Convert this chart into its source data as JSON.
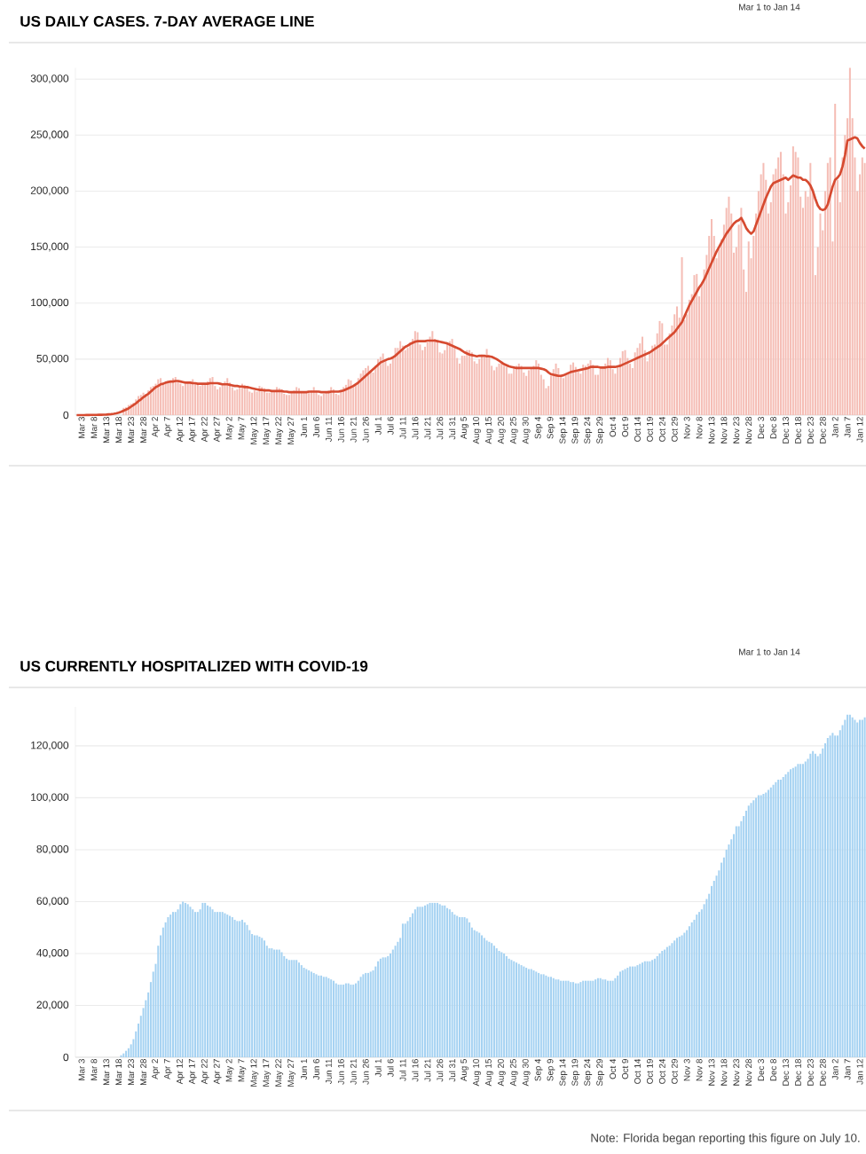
{
  "chart_data": [
    {
      "type": "bar",
      "title": "US DAILY CASES. 7-DAY AVERAGE LINE",
      "subtitle": "Mar 1 to Jan 14",
      "categories": [
        null,
        null,
        "Mar 3",
        null,
        null,
        null,
        null,
        "Mar 8",
        null,
        null,
        null,
        null,
        "Mar 13",
        null,
        null,
        null,
        null,
        "Mar 18",
        null,
        null,
        null,
        null,
        "Mar 23",
        null,
        null,
        null,
        null,
        "Mar 28",
        null,
        null,
        null,
        null,
        "Apr 2",
        null,
        null,
        null,
        null,
        "Apr 7",
        null,
        null,
        null,
        null,
        "Apr 12",
        null,
        null,
        null,
        null,
        "Apr 17",
        null,
        null,
        null,
        null,
        "Apr 22",
        null,
        null,
        null,
        null,
        "Apr 27",
        null,
        null,
        null,
        null,
        "May 2",
        null,
        null,
        null,
        null,
        "May 7",
        null,
        null,
        null,
        null,
        "May 12",
        null,
        null,
        null,
        null,
        "May 17",
        null,
        null,
        null,
        null,
        "May 22",
        null,
        null,
        null,
        null,
        "May 27",
        null,
        null,
        null,
        null,
        "Jun 1",
        null,
        null,
        null,
        null,
        "Jun 6",
        null,
        null,
        null,
        null,
        "Jun 11",
        null,
        null,
        null,
        null,
        "Jun 16",
        null,
        null,
        null,
        null,
        "Jun 21",
        null,
        null,
        null,
        null,
        "Jun 26",
        null,
        null,
        null,
        null,
        "Jul 1",
        null,
        null,
        null,
        null,
        "Jul 6",
        null,
        null,
        null,
        null,
        "Jul 11",
        null,
        null,
        null,
        null,
        "Jul 16",
        null,
        null,
        null,
        null,
        "Jul 21",
        null,
        null,
        null,
        null,
        "Jul 26",
        null,
        null,
        null,
        null,
        "Jul 31",
        null,
        null,
        null,
        null,
        "Aug 5",
        null,
        null,
        null,
        null,
        "Aug 10",
        null,
        null,
        null,
        null,
        "Aug 15",
        null,
        null,
        null,
        null,
        "Aug 20",
        null,
        null,
        null,
        null,
        "Aug 25",
        null,
        null,
        null,
        null,
        "Aug 30",
        null,
        null,
        null,
        null,
        "Sep 4",
        null,
        null,
        null,
        null,
        "Sep 9",
        null,
        null,
        null,
        null,
        "Sep 14",
        null,
        null,
        null,
        null,
        "Sep 19",
        null,
        null,
        null,
        null,
        "Sep 24",
        null,
        null,
        null,
        null,
        "Sep 29",
        null,
        null,
        null,
        null,
        "Oct 4",
        null,
        null,
        null,
        null,
        "Oct 9",
        null,
        null,
        null,
        null,
        "Oct 14",
        null,
        null,
        null,
        null,
        "Oct 19",
        null,
        null,
        null,
        null,
        "Oct 24",
        null,
        null,
        null,
        null,
        "Oct 29",
        null,
        null,
        null,
        null,
        "Nov 3",
        null,
        null,
        null,
        null,
        "Nov 8",
        null,
        null,
        null,
        null,
        "Nov 13",
        null,
        null,
        null,
        null,
        "Nov 18",
        null,
        null,
        null,
        null,
        "Nov 23",
        null,
        null,
        null,
        null,
        "Nov 28",
        null,
        null,
        null,
        null,
        "Dec 3",
        null,
        null,
        null,
        null,
        "Dec 8",
        null,
        null,
        null,
        null,
        "Dec 13",
        null,
        null,
        null,
        null,
        "Dec 18",
        null,
        null,
        null,
        null,
        "Dec 23",
        null,
        null,
        null,
        null,
        "Dec 28",
        null,
        null,
        null,
        null,
        "Jan 2",
        null,
        null,
        null,
        null,
        "Jan 7",
        null,
        null,
        null,
        null,
        "Jan 12",
        null,
        null
      ],
      "series": [
        {
          "color": "#f5bdb5",
          "values": [
            null,
            null,
            null,
            null,
            null,
            null,
            null,
            null,
            null,
            null,
            null,
            null,
            null,
            null,
            null,
            null,
            null,
            null,
            null,
            6500,
            7000,
            9000,
            10000,
            11000,
            14000,
            17000,
            18000,
            20000,
            19000,
            22000,
            25000,
            26000,
            28000,
            32000,
            33000,
            28000,
            29000,
            31000,
            30000,
            33000,
            34000,
            31000,
            28000,
            26000,
            28000,
            30000,
            30000,
            32000,
            29000,
            27000,
            26000,
            27000,
            28000,
            30000,
            33000,
            34000,
            26000,
            23000,
            25000,
            28000,
            30000,
            33000,
            29000,
            25000,
            22000,
            23000,
            25000,
            28000,
            27000,
            26000,
            21000,
            20000,
            22000,
            21000,
            26000,
            25000,
            24000,
            20000,
            20000,
            21000,
            21000,
            25000,
            24000,
            23000,
            19000,
            18000,
            18000,
            21000,
            22000,
            25000,
            24000,
            21000,
            20000,
            21000,
            21000,
            22000,
            25000,
            22000,
            18000,
            17000,
            19000,
            21000,
            22000,
            25000,
            23000,
            19000,
            18000,
            22000,
            25000,
            27000,
            32000,
            31000,
            27000,
            27000,
            33000,
            37000,
            40000,
            42000,
            44000,
            40000,
            38000,
            44000,
            50000,
            52000,
            55000,
            49000,
            44000,
            46000,
            51000,
            60000,
            60000,
            66000,
            62000,
            58000,
            60000,
            65000,
            68000,
            75000,
            74000,
            63000,
            58000,
            61000,
            65000,
            70000,
            75000,
            68000,
            66000,
            56000,
            55000,
            58000,
            64000,
            66000,
            68000,
            61000,
            51000,
            46000,
            53000,
            53000,
            58000,
            58000,
            56000,
            48000,
            46000,
            50000,
            54000,
            52000,
            59000,
            53000,
            44000,
            40000,
            43000,
            46000,
            47000,
            44000,
            43000,
            37000,
            37000,
            42000,
            44000,
            46000,
            44000,
            38000,
            35000,
            40000,
            42000,
            44000,
            49000,
            46000,
            36000,
            32000,
            24000,
            26000,
            35000,
            41000,
            46000,
            42000,
            36000,
            33000,
            37000,
            38000,
            45000,
            47000,
            43000,
            39000,
            37000,
            45000,
            44000,
            46000,
            49000,
            45000,
            36000,
            36000,
            42000,
            43000,
            46000,
            51000,
            49000,
            41000,
            37000,
            43000,
            51000,
            57000,
            58000,
            51000,
            46000,
            42000,
            56000,
            60000,
            64000,
            70000,
            58000,
            48000,
            56000,
            62000,
            63000,
            73000,
            84000,
            82000,
            63000,
            63000,
            73000,
            80000,
            90000,
            97000,
            87000,
            141000,
            85000,
            90000,
            103000,
            108000,
            125000,
            126000,
            106000,
            118000,
            130000,
            143000,
            160000,
            175000,
            160000,
            140000,
            148000,
            157000,
            170000,
            185000,
            195000,
            180000,
            145000,
            150000,
            170000,
            185000,
            130000,
            110000,
            155000,
            140000,
            160000,
            180000,
            200000,
            215000,
            225000,
            210000,
            180000,
            190000,
            215000,
            220000,
            230000,
            235000,
            215000,
            180000,
            190000,
            205000,
            240000,
            235000,
            230000,
            195000,
            185000,
            200000,
            195000,
            225000,
            200000,
            125000,
            150000,
            180000,
            165000,
            200000,
            225000,
            230000,
            155000,
            278000,
            210000,
            190000,
            230000,
            250000,
            265000,
            310000,
            265000,
            230000,
            200000,
            215000,
            230000,
            225000
          ]
        },
        {
          "type": "line",
          "color": "#d64a30",
          "values": [
            0,
            0,
            0,
            0,
            100,
            100,
            200,
            200,
            200,
            300,
            300,
            400,
            500,
            700,
            900,
            1200,
            1600,
            2200,
            3000,
            4000,
            5000,
            6000,
            7500,
            9000,
            10500,
            12500,
            14000,
            16000,
            17500,
            19000,
            21000,
            23000,
            25000,
            26000,
            27500,
            28000,
            29000,
            29500,
            30000,
            30000,
            30500,
            30500,
            30000,
            29500,
            29000,
            29000,
            29000,
            28500,
            28500,
            28000,
            28000,
            28000,
            28000,
            28000,
            28500,
            28500,
            28500,
            28500,
            28000,
            27500,
            27500,
            27500,
            27000,
            26500,
            26000,
            26000,
            25500,
            25500,
            25000,
            25000,
            24500,
            24000,
            23500,
            23000,
            22500,
            22500,
            22000,
            22000,
            22000,
            21500,
            21500,
            21500,
            21500,
            21500,
            21000,
            21000,
            20500,
            20500,
            20500,
            20500,
            20500,
            20500,
            20500,
            20500,
            21000,
            21000,
            21000,
            21000,
            21000,
            20500,
            20500,
            20500,
            20500,
            21000,
            21000,
            21000,
            21000,
            21500,
            22000,
            23000,
            24000,
            25000,
            26000,
            27500,
            29000,
            31000,
            33000,
            35000,
            37000,
            39000,
            41000,
            43000,
            45000,
            47000,
            48000,
            49000,
            50000,
            50500,
            51500,
            53000,
            55000,
            57000,
            59000,
            61000,
            62000,
            63500,
            64500,
            65500,
            66000,
            66000,
            66000,
            66000,
            66500,
            66500,
            66500,
            66500,
            66000,
            65500,
            65000,
            64500,
            64000,
            63000,
            62000,
            61000,
            60000,
            59000,
            57500,
            56000,
            55000,
            54000,
            53500,
            53000,
            52500,
            53000,
            53000,
            53000,
            52500,
            52500,
            52000,
            51000,
            50000,
            48500,
            47000,
            45500,
            44500,
            43500,
            43000,
            42500,
            42000,
            42000,
            42000,
            42000,
            42000,
            42000,
            42000,
            42000,
            42000,
            42000,
            41500,
            41000,
            40000,
            38000,
            36500,
            36000,
            35500,
            35000,
            35000,
            35500,
            36500,
            37500,
            38500,
            39000,
            39500,
            40000,
            40500,
            41000,
            41500,
            42000,
            43000,
            43000,
            43000,
            43000,
            42500,
            42500,
            42500,
            43000,
            43000,
            43000,
            43000,
            43500,
            44000,
            45000,
            46000,
            47000,
            48000,
            49000,
            50000,
            51000,
            52000,
            53000,
            54000,
            55000,
            56000,
            57500,
            59000,
            60500,
            62000,
            64000,
            66000,
            68000,
            70000,
            72000,
            74000,
            77000,
            80000,
            83000,
            88000,
            93000,
            98000,
            102000,
            106000,
            110000,
            114000,
            117000,
            121000,
            126000,
            131000,
            136000,
            141000,
            146000,
            150000,
            154000,
            158000,
            162000,
            165000,
            168000,
            171000,
            173000,
            174000,
            176000,
            172000,
            167000,
            164000,
            162000,
            164000,
            170000,
            176000,
            182000,
            188000,
            194000,
            199000,
            204000,
            207000,
            208000,
            209000,
            210000,
            211000,
            212000,
            210000,
            212000,
            214000,
            213000,
            212000,
            212000,
            210000,
            210000,
            208000,
            205000,
            200000,
            193000,
            187000,
            184000,
            183000,
            184000,
            188000,
            196000,
            204000,
            210000,
            212000,
            215000,
            222000,
            232000,
            245000,
            246000,
            247000,
            248000,
            247000,
            243000,
            240000,
            238000
          ]
        }
      ],
      "ylim": [
        0,
        310000
      ],
      "yticks": [
        0,
        {
          "value": 50000,
          "label": "50,000"
        },
        {
          "value": 100000,
          "label": "100,000"
        },
        {
          "value": 150000,
          "label": "150,000"
        },
        {
          "value": 200000,
          "label": "200,000"
        },
        {
          "value": 250000,
          "label": "250,000"
        },
        {
          "value": 300000,
          "label": "300,000"
        }
      ],
      "grid": "y"
    },
    {
      "type": "bar",
      "title": "US CURRENTLY HOSPITALIZED WITH COVID-19",
      "subtitle": "Mar 1 to Jan 14",
      "categories": [
        null,
        null,
        "Mar 3",
        null,
        null,
        null,
        null,
        "Mar 8",
        null,
        null,
        null,
        null,
        "Mar 13",
        null,
        null,
        null,
        null,
        "Mar 18",
        null,
        null,
        null,
        null,
        "Mar 23",
        null,
        null,
        null,
        null,
        "Mar 28",
        null,
        null,
        null,
        null,
        "Apr 2",
        null,
        null,
        null,
        null,
        "Apr 7",
        null,
        null,
        null,
        null,
        "Apr 12",
        null,
        null,
        null,
        null,
        "Apr 17",
        null,
        null,
        null,
        null,
        "Apr 22",
        null,
        null,
        null,
        null,
        "Apr 27",
        null,
        null,
        null,
        null,
        "May 2",
        null,
        null,
        null,
        null,
        "May 7",
        null,
        null,
        null,
        null,
        "May 12",
        null,
        null,
        null,
        null,
        "May 17",
        null,
        null,
        null,
        null,
        "May 22",
        null,
        null,
        null,
        null,
        "May 27",
        null,
        null,
        null,
        null,
        "Jun 1",
        null,
        null,
        null,
        null,
        "Jun 6",
        null,
        null,
        null,
        null,
        "Jun 11",
        null,
        null,
        null,
        null,
        "Jun 16",
        null,
        null,
        null,
        null,
        "Jun 21",
        null,
        null,
        null,
        null,
        "Jun 26",
        null,
        null,
        null,
        null,
        "Jul 1",
        null,
        null,
        null,
        null,
        "Jul 6",
        null,
        null,
        null,
        null,
        "Jul 11",
        null,
        null,
        null,
        null,
        "Jul 16",
        null,
        null,
        null,
        null,
        "Jul 21",
        null,
        null,
        null,
        null,
        "Jul 26",
        null,
        null,
        null,
        null,
        "Jul 31",
        null,
        null,
        null,
        null,
        "Aug 5",
        null,
        null,
        null,
        null,
        "Aug 10",
        null,
        null,
        null,
        null,
        "Aug 15",
        null,
        null,
        null,
        null,
        "Aug 20",
        null,
        null,
        null,
        null,
        "Aug 25",
        null,
        null,
        null,
        null,
        "Aug 30",
        null,
        null,
        null,
        null,
        "Sep 4",
        null,
        null,
        null,
        null,
        "Sep 9",
        null,
        null,
        null,
        null,
        "Sep 14",
        null,
        null,
        null,
        null,
        "Sep 19",
        null,
        null,
        null,
        null,
        "Sep 24",
        null,
        null,
        null,
        null,
        "Sep 29",
        null,
        null,
        null,
        null,
        "Oct 4",
        null,
        null,
        null,
        null,
        "Oct 9",
        null,
        null,
        null,
        null,
        "Oct 14",
        null,
        null,
        null,
        null,
        "Oct 19",
        null,
        null,
        null,
        null,
        "Oct 24",
        null,
        null,
        null,
        null,
        "Oct 29",
        null,
        null,
        null,
        null,
        "Nov 3",
        null,
        null,
        null,
        null,
        "Nov 8",
        null,
        null,
        null,
        null,
        "Nov 13",
        null,
        null,
        null,
        null,
        "Nov 18",
        null,
        null,
        null,
        null,
        "Nov 23",
        null,
        null,
        null,
        null,
        "Nov 28",
        null,
        null,
        null,
        null,
        "Dec 3",
        null,
        null,
        null,
        null,
        "Dec 8",
        null,
        null,
        null,
        null,
        "Dec 13",
        null,
        null,
        null,
        null,
        "Dec 18",
        null,
        null,
        null,
        null,
        "Dec 23",
        null,
        null,
        null,
        null,
        "Dec 28",
        null,
        null,
        null,
        null,
        "Jan 2",
        null,
        null,
        null,
        null,
        "Jan 7",
        null,
        null,
        null,
        null,
        "Jan 12",
        null,
        null
      ],
      "values": [
        0,
        0,
        0,
        0,
        0,
        0,
        0,
        0,
        0,
        0,
        0,
        0,
        0,
        0,
        0,
        0,
        null,
        null,
        800,
        1500,
        2500,
        3500,
        5000,
        7000,
        10000,
        13000,
        16000,
        19000,
        22000,
        25000,
        29000,
        33000,
        36000,
        43000,
        47000,
        50000,
        52000,
        54000,
        55000,
        56000,
        56000,
        57000,
        59000,
        60000,
        59500,
        59000,
        58000,
        57000,
        56000,
        56000,
        57000,
        59500,
        59500,
        58500,
        58000,
        57000,
        56000,
        56000,
        56000,
        56000,
        55500,
        55000,
        54500,
        54000,
        53000,
        52500,
        52500,
        53000,
        52000,
        51000,
        49000,
        47500,
        47000,
        47000,
        46500,
        46000,
        45000,
        43000,
        42000,
        42000,
        41500,
        41500,
        41500,
        40500,
        39000,
        38000,
        37500,
        37500,
        37500,
        37500,
        36500,
        35500,
        34500,
        34000,
        33500,
        33000,
        32500,
        32000,
        31500,
        31500,
        31000,
        31000,
        30500,
        30000,
        29500,
        28500,
        28000,
        28000,
        28000,
        28500,
        28500,
        28000,
        28000,
        28500,
        29500,
        31000,
        32000,
        32500,
        32500,
        33000,
        33500,
        35000,
        37000,
        38000,
        38500,
        38500,
        39000,
        40000,
        41500,
        43000,
        44500,
        46000,
        51500,
        51500,
        52500,
        54000,
        55500,
        57000,
        58000,
        58000,
        58000,
        58500,
        59000,
        59500,
        59500,
        59500,
        59500,
        59000,
        58500,
        58500,
        57500,
        57000,
        56000,
        55000,
        54500,
        54000,
        54000,
        54000,
        53500,
        52000,
        50000,
        49000,
        48500,
        48000,
        47000,
        46000,
        45000,
        44500,
        44000,
        43000,
        42000,
        41000,
        40500,
        40000,
        39000,
        38000,
        37500,
        37000,
        36500,
        36000,
        35500,
        35000,
        34500,
        34000,
        34000,
        33500,
        33000,
        32500,
        32000,
        32000,
        31500,
        31000,
        31000,
        30500,
        30000,
        30000,
        29500,
        29500,
        29500,
        29500,
        29000,
        29000,
        28500,
        28500,
        29000,
        29500,
        29500,
        29500,
        29500,
        29500,
        30000,
        30500,
        30500,
        30000,
        30000,
        29500,
        29500,
        29500,
        30500,
        31500,
        33000,
        33500,
        34000,
        34500,
        35000,
        35000,
        35000,
        35500,
        36000,
        36500,
        37000,
        37000,
        37000,
        37500,
        38000,
        39000,
        40000,
        41000,
        41500,
        42500,
        43000,
        44000,
        45000,
        46000,
        46500,
        47000,
        48000,
        49000,
        50500,
        52000,
        53000,
        55000,
        56000,
        57000,
        59000,
        61000,
        63000,
        66000,
        68000,
        70000,
        72000,
        75000,
        77000,
        80000,
        82000,
        84000,
        86000,
        89000,
        89000,
        91000,
        93000,
        95000,
        97000,
        98000,
        99000,
        100000,
        101000,
        101000,
        101500,
        102000,
        103000,
        104000,
        105000,
        106000,
        107000,
        107000,
        108000,
        109000,
        110000,
        111000,
        111500,
        112000,
        113000,
        113000,
        113000,
        114000,
        115000,
        117000,
        118000,
        117000,
        116000,
        117000,
        119000,
        121000,
        123000,
        124000,
        125000,
        124000,
        124000,
        126000,
        128000,
        130000,
        132000,
        132000,
        131000,
        130000,
        129000,
        130000,
        130000,
        131000
      ],
      "color": "#a5d2f2",
      "ylim": [
        0,
        135000
      ],
      "yticks": [
        0,
        {
          "value": 20000,
          "label": "20,000"
        },
        {
          "value": 40000,
          "label": "40,000"
        },
        {
          "value": 60000,
          "label": "60,000"
        },
        {
          "value": 80000,
          "label": "80,000"
        },
        {
          "value": 100000,
          "label": "100,000"
        },
        {
          "value": 120000,
          "label": "120,000"
        }
      ],
      "grid": "y",
      "annotations": [
        "Note: Florida began reporting this figure on July 10."
      ]
    }
  ]
}
